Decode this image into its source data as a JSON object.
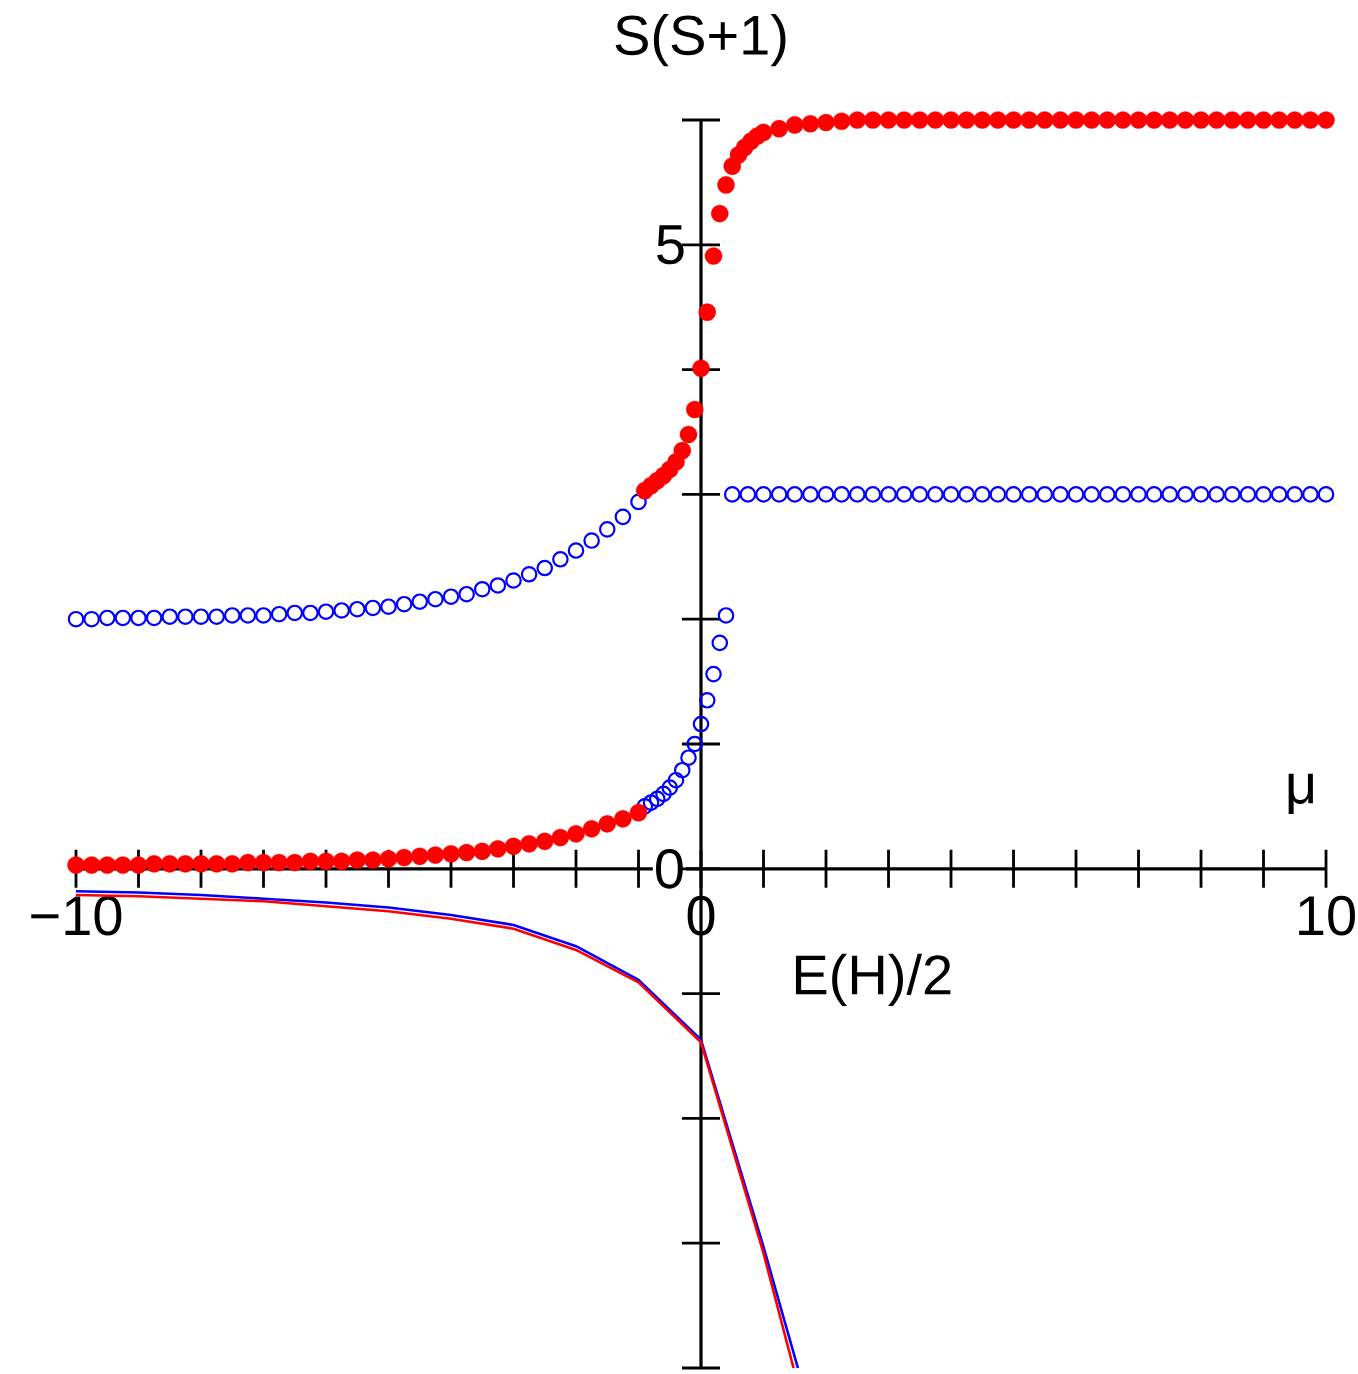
{
  "chart_data": {
    "type": "scatter",
    "xlabel": "μ",
    "ylabel": "S(S+1)",
    "annotations": [
      "E(H)/2"
    ],
    "xlim": [
      -10,
      10
    ],
    "ylim": [
      -4,
      6
    ],
    "xticks": [
      {
        "value": -10,
        "label": "−10"
      },
      {
        "value": -9,
        "label": null
      },
      {
        "value": -8,
        "label": null
      },
      {
        "value": -7,
        "label": null
      },
      {
        "value": -6,
        "label": null
      },
      {
        "value": -5,
        "label": null
      },
      {
        "value": -4,
        "label": null
      },
      {
        "value": -3,
        "label": null
      },
      {
        "value": -2,
        "label": null
      },
      {
        "value": -1,
        "label": null
      },
      0,
      {
        "value": 1,
        "label": null
      },
      {
        "value": 2,
        "label": null
      },
      {
        "value": 3,
        "label": null
      },
      {
        "value": 4,
        "label": null
      },
      {
        "value": 5,
        "label": null
      },
      {
        "value": 6,
        "label": null
      },
      {
        "value": 7,
        "label": null
      },
      {
        "value": 8,
        "label": null
      },
      {
        "value": 9,
        "label": null
      },
      10
    ],
    "yticks": [
      {
        "value": -4,
        "label": null
      },
      {
        "value": -3,
        "label": null
      },
      {
        "value": -2,
        "label": null
      },
      {
        "value": -1,
        "label": null
      },
      0,
      {
        "value": 1,
        "label": null
      },
      {
        "value": 2,
        "label": null
      },
      {
        "value": 3,
        "label": null
      },
      {
        "value": 4,
        "label": null
      },
      5,
      {
        "value": 6,
        "label": null
      }
    ],
    "marker": "circle",
    "series": [
      {
        "type": "line",
        "color": "#0000ff",
        "marker": "none",
        "line_style": "solid",
        "x": [
          -10,
          -9,
          -8,
          -7,
          -6,
          -5,
          -4,
          -3,
          -2,
          -1,
          0,
          1,
          1.55
        ],
        "values": [
          -0.18,
          -0.19,
          -0.21,
          -0.24,
          -0.27,
          -0.31,
          -0.37,
          -0.45,
          -0.62,
          -0.89,
          -1.37,
          -3.03,
          -4
        ]
      },
      {
        "type": "line",
        "color": "#ff0000",
        "marker": "none",
        "line_style": "solid",
        "x": [
          -10,
          -9,
          -8,
          -7,
          -6,
          -5,
          -4,
          -3,
          -2,
          -1,
          0,
          1,
          1.48
        ],
        "values": [
          -0.21,
          -0.22,
          -0.24,
          -0.26,
          -0.3,
          -0.34,
          -0.4,
          -0.48,
          -0.65,
          -0.91,
          -1.39,
          -3.08,
          -4
        ]
      },
      {
        "color": "#0000ff",
        "x": [
          -10,
          -9.75,
          -9.5,
          -9.25,
          -9,
          -8.75,
          -8.5,
          -8.25,
          -8,
          -7.75,
          -7.5,
          -7.25,
          -7,
          -6.75,
          -6.5,
          -6.25,
          -6,
          -5.75,
          -5.5,
          -5.25,
          -5,
          -4.75,
          -4.5,
          -4.25,
          -4,
          -3.75,
          -3.5,
          -3.25,
          -3,
          -2.75,
          -2.5,
          -2.25,
          -2,
          -1.75,
          -1.5,
          -1.25,
          -1,
          -0.9,
          -0.8,
          -0.7,
          -0.6,
          -0.5,
          -0.4,
          -0.3,
          -0.2,
          -0.1,
          0,
          0.1,
          0.2,
          0.3,
          0.4,
          0.5,
          0.75,
          1,
          1.25,
          1.5,
          1.75,
          2,
          2.25,
          2.5,
          2.75,
          3,
          3.25,
          3.5,
          3.75,
          4,
          4.25,
          4.5,
          4.75,
          5,
          5.25,
          5.5,
          5.75,
          6,
          6.25,
          6.5,
          6.75,
          7,
          7.25,
          7.5,
          7.75,
          8,
          8.25,
          8.5,
          8.75,
          9,
          9.25,
          9.5,
          9.75,
          10
        ],
        "values": [
          2,
          2,
          2.01,
          2.01,
          2.01,
          2.01,
          2.02,
          2.02,
          2.02,
          2.02,
          2.03,
          2.03,
          2.03,
          2.04,
          2.05,
          2.05,
          2.06,
          2.07,
          2.08,
          2.09,
          2.1,
          2.12,
          2.14,
          2.16,
          2.18,
          2.2,
          2.24,
          2.27,
          2.31,
          2.36,
          2.41,
          2.48,
          2.55,
          2.63,
          2.72,
          2.82,
          2.94,
          0.5,
          0.53,
          0.56,
          0.6,
          0.65,
          0.71,
          0.79,
          0.89,
          1,
          1.16,
          1.35,
          1.56,
          1.81,
          2.03,
          3,
          3,
          3,
          3,
          3,
          3,
          3,
          3,
          3,
          3,
          3,
          3,
          3,
          3,
          3,
          3,
          3,
          3,
          3,
          3,
          3,
          3,
          3,
          3,
          3,
          3,
          3,
          3,
          3,
          3,
          3,
          3,
          3,
          3,
          3,
          3,
          3,
          3,
          3
        ]
      },
      {
        "color": "#ff0000",
        "x": [
          -10,
          -9.75,
          -9.5,
          -9.25,
          -9,
          -8.75,
          -8.5,
          -8.25,
          -8,
          -7.75,
          -7.5,
          -7.25,
          -7,
          -6.75,
          -6.5,
          -6.25,
          -6,
          -5.75,
          -5.5,
          -5.25,
          -5,
          -4.75,
          -4.5,
          -4.25,
          -4,
          -3.75,
          -3.5,
          -3.25,
          -3,
          -2.75,
          -2.5,
          -2.25,
          -2,
          -1.75,
          -1.5,
          -1.25,
          -1,
          -0.9,
          -0.8,
          -0.7,
          -0.6,
          -0.5,
          -0.4,
          -0.3,
          -0.2,
          -0.1,
          0,
          0.1,
          0.2,
          0.3,
          0.4,
          0.5,
          0.6,
          0.7,
          0.8,
          0.9,
          1,
          1.25,
          1.5,
          1.75,
          2,
          2.25,
          2.5,
          2.75,
          3,
          3.25,
          3.5,
          3.75,
          4,
          4.25,
          4.5,
          4.75,
          5,
          5.25,
          5.5,
          5.75,
          6,
          6.25,
          6.5,
          6.75,
          7,
          7.25,
          7.5,
          7.75,
          8,
          8.25,
          8.5,
          8.75,
          9,
          9.25,
          9.5,
          9.75,
          10
        ],
        "values": [
          0.03,
          0.03,
          0.03,
          0.03,
          0.03,
          0.04,
          0.04,
          0.04,
          0.04,
          0.04,
          0.04,
          0.05,
          0.05,
          0.05,
          0.05,
          0.06,
          0.06,
          0.06,
          0.07,
          0.07,
          0.08,
          0.09,
          0.1,
          0.11,
          0.12,
          0.13,
          0.14,
          0.16,
          0.18,
          0.2,
          0.22,
          0.25,
          0.28,
          0.32,
          0.36,
          0.4,
          0.45,
          3.03,
          3.07,
          3.11,
          3.15,
          3.2,
          3.26,
          3.35,
          3.48,
          3.68,
          4.01,
          4.46,
          4.91,
          5.25,
          5.48,
          5.63,
          5.72,
          5.78,
          5.83,
          5.87,
          5.9,
          5.93,
          5.96,
          5.97,
          5.98,
          5.99,
          6,
          6,
          6,
          6,
          6,
          6,
          6,
          6,
          6,
          6,
          6,
          6,
          6,
          6,
          6,
          6,
          6,
          6,
          6,
          6,
          6,
          6,
          6,
          6,
          6,
          6,
          6,
          6,
          6,
          6,
          6
        ]
      }
    ]
  }
}
